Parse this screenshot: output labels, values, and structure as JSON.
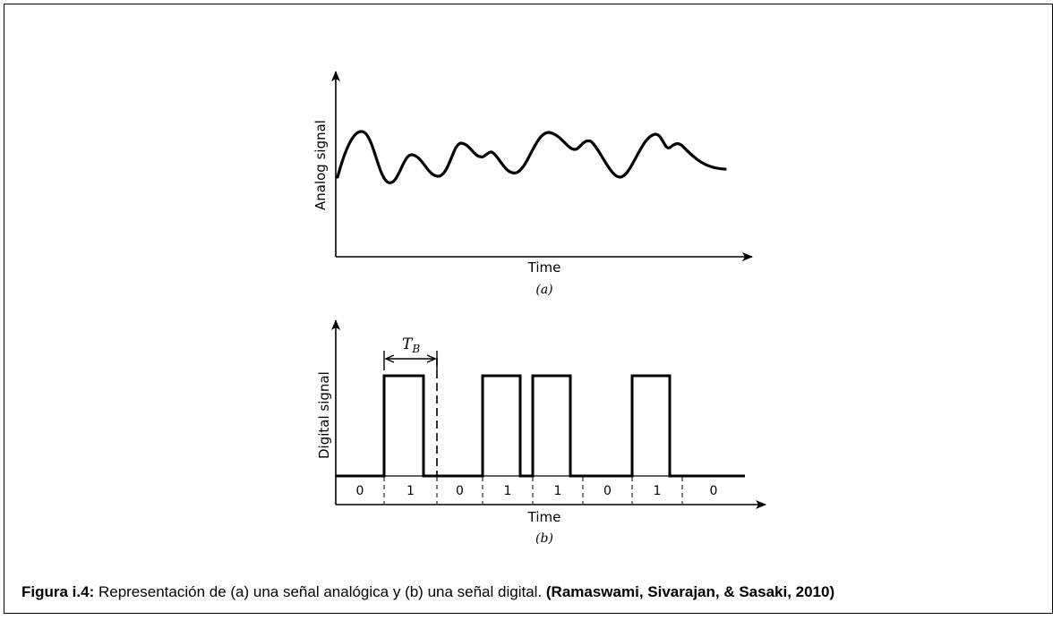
{
  "panel_a": {
    "ylabel": "Analog signal",
    "xlabel": "Time",
    "sublabel": "(a)"
  },
  "panel_b": {
    "ylabel": "Digital signal",
    "xlabel": "Time",
    "sublabel": "(b)",
    "period_label_main": "T",
    "period_label_sub": "B",
    "bits": [
      "0",
      "1",
      "0",
      "1",
      "1",
      "0",
      "1",
      "0"
    ]
  },
  "caption": {
    "label": "Figura  i.4:",
    "text": " Representación de (a) una señal analógica y (b) una señal digital. ",
    "citation": "(Ramaswami, Sivarajan, & Sasaki, 2010)"
  }
}
